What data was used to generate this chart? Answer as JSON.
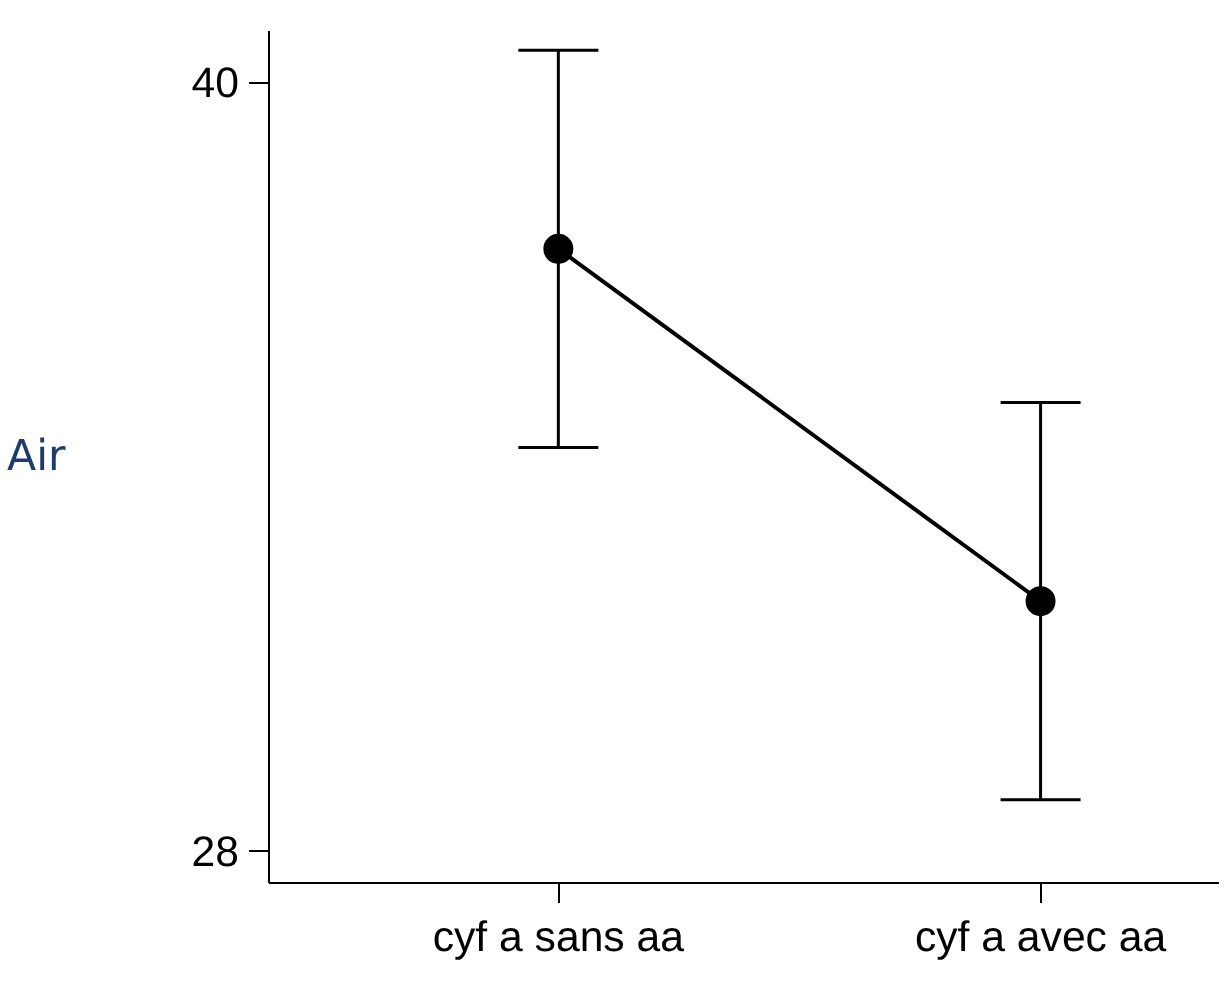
{
  "chart_data": {
    "type": "line",
    "ylabel": "Air",
    "categories": [
      "cyf a sans aa",
      "cyf a avec aa"
    ],
    "series": [
      {
        "color": "#000000",
        "values": [
          37.4,
          31.9
        ],
        "errors": [
          3.1,
          3.1
        ]
      }
    ],
    "ylim": [
      27.5,
      40.8
    ],
    "yticks": [
      28,
      40
    ],
    "marker": "circle",
    "line_style": "solid",
    "grid": false
  }
}
